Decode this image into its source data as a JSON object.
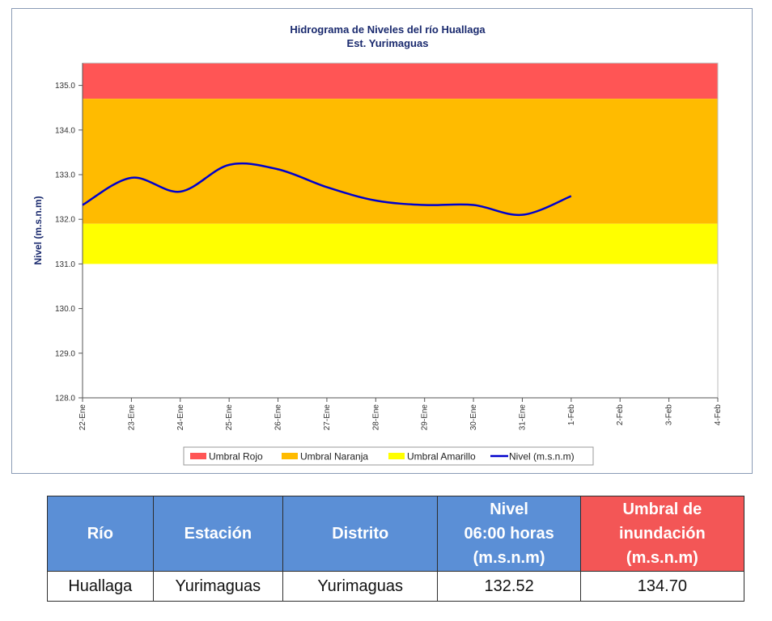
{
  "chart_data": {
    "type": "line",
    "title": "Hidrograma de Niveles del río Huallaga",
    "subtitle": "Est. Yurimaguas",
    "ylabel": "Nivel (m.s.n.m)",
    "xlabel": "",
    "ylim": [
      128.0,
      135.5
    ],
    "yticks": [
      "128.0",
      "129.0",
      "130.0",
      "131.0",
      "132.0",
      "133.0",
      "134.0",
      "135.0"
    ],
    "categories": [
      "22-Ene",
      "23-Ene",
      "24-Ene",
      "25-Ene",
      "26-Ene",
      "27-Ene",
      "28-Ene",
      "29-Ene",
      "30-Ene",
      "31-Ene",
      "1-Feb",
      "2-Feb",
      "3-Feb",
      "4-Feb"
    ],
    "bands": [
      {
        "name": "Umbral Rojo",
        "from": 134.7,
        "to": 135.5,
        "color": "#ff5555"
      },
      {
        "name": "Umbral Naranja",
        "from": 131.9,
        "to": 134.7,
        "color": "#ffbb00"
      },
      {
        "name": "Umbral Amarillo",
        "from": 131.0,
        "to": 131.9,
        "color": "#ffff00"
      }
    ],
    "series": [
      {
        "name": "Nivel (m.s.n.m)",
        "color": "#0000cc",
        "x": [
          "22-Ene",
          "23-Ene",
          "24-Ene",
          "25-Ene",
          "26-Ene",
          "27-Ene",
          "28-Ene",
          "29-Ene",
          "30-Ene",
          "31-Ene",
          "1-Feb"
        ],
        "values": [
          132.32,
          132.93,
          132.62,
          133.22,
          133.12,
          132.72,
          132.42,
          132.32,
          132.32,
          132.1,
          132.52
        ]
      }
    ],
    "legend_position": "bottom",
    "grid": false
  },
  "table": {
    "headers": [
      "Río",
      "Estación",
      "Distrito",
      "Nivel 06:00 horas (m.s.n.m)",
      "Umbral de inundación (m.s.n.m)"
    ],
    "row": [
      "Huallaga",
      "Yurimaguas",
      "Yurimaguas",
      "132.52",
      "134.70"
    ],
    "alert_header_color": "#f35656",
    "header_color": "#5b8fd6"
  }
}
